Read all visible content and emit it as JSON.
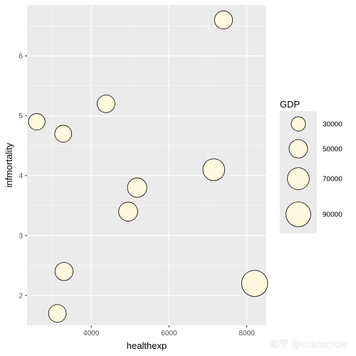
{
  "chart_data": {
    "type": "scatter",
    "xlabel": "healthexp",
    "ylabel": "infmortality",
    "xlim": [
      2350,
      8500
    ],
    "ylim": [
      1.5,
      6.85
    ],
    "x_ticks": [
      4000,
      6000,
      8000
    ],
    "y_ticks": [
      2,
      3,
      4,
      5,
      6
    ],
    "grid": true,
    "points": [
      {
        "x": 7400,
        "y": 6.6,
        "gdp": 48000
      },
      {
        "x": 4380,
        "y": 5.2,
        "gdp": 46000
      },
      {
        "x": 2600,
        "y": 4.9,
        "gdp": 40000
      },
      {
        "x": 3280,
        "y": 4.7,
        "gdp": 42000
      },
      {
        "x": 7150,
        "y": 4.1,
        "gdp": 70000
      },
      {
        "x": 5180,
        "y": 3.8,
        "gdp": 55000
      },
      {
        "x": 4950,
        "y": 3.4,
        "gdp": 53000
      },
      {
        "x": 3300,
        "y": 2.4,
        "gdp": 48000
      },
      {
        "x": 3130,
        "y": 1.7,
        "gdp": 46000
      },
      {
        "x": 8200,
        "y": 2.2,
        "gdp": 100000
      }
    ],
    "legend": {
      "title": "GDP",
      "placement": "right",
      "entries": [
        {
          "label": "30000",
          "value": 30000
        },
        {
          "label": "50000",
          "value": 50000
        },
        {
          "label": "70000",
          "value": 70000
        },
        {
          "label": "90000",
          "value": 90000
        }
      ]
    },
    "colors": {
      "panel": "#ebebeb",
      "grid_major": "#ffffff",
      "point_fill": "#fff8dc",
      "point_stroke": "#000000"
    }
  },
  "watermark": "知乎 @scarecrow"
}
